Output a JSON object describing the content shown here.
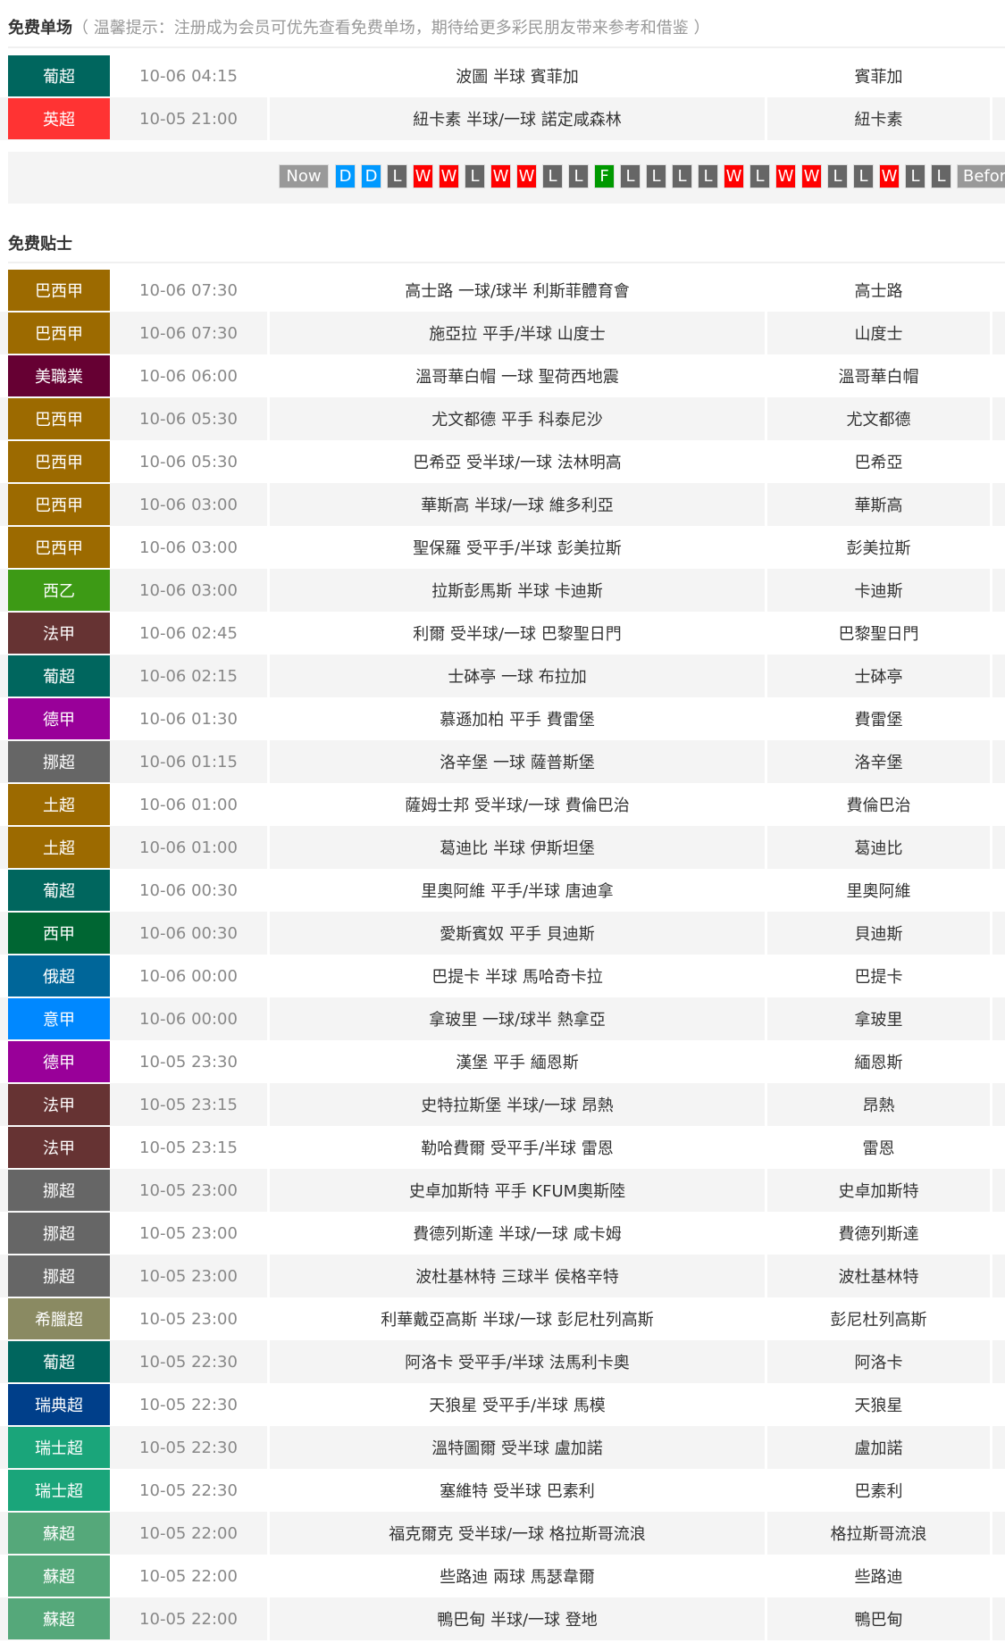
{
  "free_single": {
    "title": "免费单场",
    "hint": "（ 温馨提示：注册成为会员可优先查看免费单场，期待给更多彩民朋友带来参考和借鉴 ）",
    "rows": [
      {
        "league": "葡超",
        "color": "#00665e",
        "time": "10-06 04:15",
        "match": "波圖 半球 賓菲加",
        "pick": "賓菲加"
      },
      {
        "league": "英超",
        "color": "#ff3333",
        "time": "10-05 21:00",
        "match": "紐卡素 半球/一球 諾定咸森林",
        "pick": "紐卡素"
      }
    ],
    "streak": {
      "now_label": "Now",
      "before_label": "Before",
      "results": [
        "D",
        "D",
        "L",
        "W",
        "W",
        "L",
        "W",
        "W",
        "L",
        "L",
        "F",
        "L",
        "L",
        "L",
        "L",
        "W",
        "L",
        "W",
        "W",
        "L",
        "L",
        "W",
        "L",
        "L"
      ],
      "colors": {
        "D": "#0099ff",
        "L": "#666666",
        "W": "#ff0000",
        "F": "#009900",
        "label": "#999999"
      }
    }
  },
  "free_tips": {
    "title": "免费贴士",
    "rows": [
      {
        "league": "巴西甲",
        "color": "#9c6a00",
        "time": "10-06 07:30",
        "match": "高士路 一球/球半 利斯菲體育會",
        "pick": "高士路"
      },
      {
        "league": "巴西甲",
        "color": "#9c6a00",
        "time": "10-06 07:30",
        "match": "施亞拉 平手/半球 山度士",
        "pick": "山度士"
      },
      {
        "league": "美職業",
        "color": "#660033",
        "time": "10-06 06:00",
        "match": "溫哥華白帽 一球 聖荷西地震",
        "pick": "溫哥華白帽"
      },
      {
        "league": "巴西甲",
        "color": "#9c6a00",
        "time": "10-06 05:30",
        "match": "尤文都德 平手 科泰尼沙",
        "pick": "尤文都德"
      },
      {
        "league": "巴西甲",
        "color": "#9c6a00",
        "time": "10-06 05:30",
        "match": "巴希亞 受半球/一球 法林明高",
        "pick": "巴希亞"
      },
      {
        "league": "巴西甲",
        "color": "#9c6a00",
        "time": "10-06 03:00",
        "match": "華斯高 半球/一球 維多利亞",
        "pick": "華斯高"
      },
      {
        "league": "巴西甲",
        "color": "#9c6a00",
        "time": "10-06 03:00",
        "match": "聖保羅 受平手/半球 彭美拉斯",
        "pick": "彭美拉斯"
      },
      {
        "league": "西乙",
        "color": "#3d9a15",
        "time": "10-06 03:00",
        "match": "拉斯彭馬斯 半球 卡迪斯",
        "pick": "卡迪斯"
      },
      {
        "league": "法甲",
        "color": "#663333",
        "time": "10-06 02:45",
        "match": "利爾 受半球/一球 巴黎聖日門",
        "pick": "巴黎聖日門"
      },
      {
        "league": "葡超",
        "color": "#00665e",
        "time": "10-06 02:15",
        "match": "士砵亭 一球 布拉加",
        "pick": "士砵亭"
      },
      {
        "league": "德甲",
        "color": "#990099",
        "time": "10-06 01:30",
        "match": "慕遜加柏 平手 費雷堡",
        "pick": "費雷堡"
      },
      {
        "league": "挪超",
        "color": "#666666",
        "time": "10-06 01:15",
        "match": "洛辛堡 一球 薩普斯堡",
        "pick": "洛辛堡"
      },
      {
        "league": "土超",
        "color": "#9c6a00",
        "time": "10-06 01:00",
        "match": "薩姆士邦 受半球/一球 費倫巴治",
        "pick": "費倫巴治"
      },
      {
        "league": "土超",
        "color": "#9c6a00",
        "time": "10-06 01:00",
        "match": "葛迪比 半球 伊斯坦堡",
        "pick": "葛迪比"
      },
      {
        "league": "葡超",
        "color": "#00665e",
        "time": "10-06 00:30",
        "match": "里奧阿維 平手/半球 唐迪拿",
        "pick": "里奧阿維"
      },
      {
        "league": "西甲",
        "color": "#006633",
        "time": "10-06 00:30",
        "match": "愛斯賓奴 平手 貝迪斯",
        "pick": "貝迪斯"
      },
      {
        "league": "俄超",
        "color": "#006699",
        "time": "10-06 00:00",
        "match": "巴提卡 半球 馬哈奇卡拉",
        "pick": "巴提卡"
      },
      {
        "league": "意甲",
        "color": "#0088ff",
        "time": "10-06 00:00",
        "match": "拿玻里 一球/球半 熱拿亞",
        "pick": "拿玻里"
      },
      {
        "league": "德甲",
        "color": "#990099",
        "time": "10-05 23:30",
        "match": "漢堡 平手 緬恩斯",
        "pick": "緬恩斯"
      },
      {
        "league": "法甲",
        "color": "#663333",
        "time": "10-05 23:15",
        "match": "史特拉斯堡 半球/一球 昂熱",
        "pick": "昂熱"
      },
      {
        "league": "法甲",
        "color": "#663333",
        "time": "10-05 23:15",
        "match": "勒哈費爾 受平手/半球 雷恩",
        "pick": "雷恩"
      },
      {
        "league": "挪超",
        "color": "#666666",
        "time": "10-05 23:00",
        "match": "史卓加斯特 平手 KFUM奧斯陸",
        "pick": "史卓加斯特"
      },
      {
        "league": "挪超",
        "color": "#666666",
        "time": "10-05 23:00",
        "match": "費德列斯達 半球/一球 咸卡姆",
        "pick": "費德列斯達"
      },
      {
        "league": "挪超",
        "color": "#666666",
        "time": "10-05 23:00",
        "match": "波杜基林特 三球半 侯格辛特",
        "pick": "波杜基林特"
      },
      {
        "league": "希臘超",
        "color": "#8a8a62",
        "time": "10-05 23:00",
        "match": "利華戴亞高斯 半球/一球 彭尼杜列高斯",
        "pick": "彭尼杜列高斯"
      },
      {
        "league": "葡超",
        "color": "#00665e",
        "time": "10-05 22:30",
        "match": "阿洛卡 受平手/半球 法馬利卡奧",
        "pick": "阿洛卡"
      },
      {
        "league": "瑞典超",
        "color": "#003f8a",
        "time": "10-05 22:30",
        "match": "天狼星 受平手/半球 馬模",
        "pick": "天狼星"
      },
      {
        "league": "瑞士超",
        "color": "#1aa57a",
        "time": "10-05 22:30",
        "match": "溫特圖爾 受半球 盧加諾",
        "pick": "盧加諾"
      },
      {
        "league": "瑞士超",
        "color": "#1aa57a",
        "time": "10-05 22:30",
        "match": "塞維特 受半球 巴素利",
        "pick": "巴素利"
      },
      {
        "league": "蘇超",
        "color": "#55a87a",
        "time": "10-05 22:00",
        "match": "福克爾克 受半球/一球 格拉斯哥流浪",
        "pick": "格拉斯哥流浪"
      },
      {
        "league": "蘇超",
        "color": "#55a87a",
        "time": "10-05 22:00",
        "match": "些路迪 兩球 馬瑟韋爾",
        "pick": "些路迪"
      },
      {
        "league": "蘇超",
        "color": "#55a87a",
        "time": "10-05 22:00",
        "match": "鴨巴甸 半球/一球 登地",
        "pick": "鴨巴甸"
      }
    ]
  }
}
